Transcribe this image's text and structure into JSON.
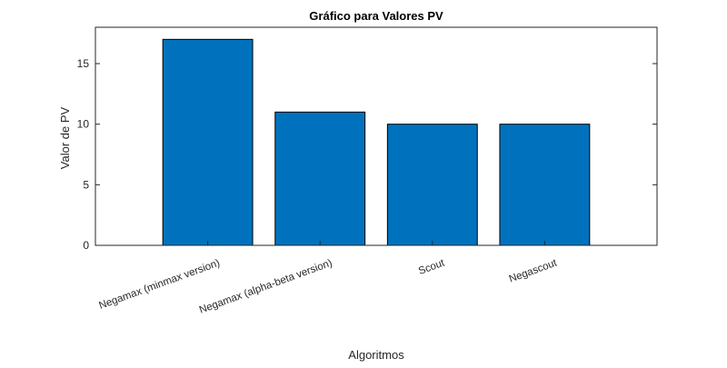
{
  "chart_data": {
    "type": "bar",
    "title": "Gráfico para Valores PV",
    "xlabel": "Algoritmos",
    "ylabel": "Valor de PV",
    "categories": [
      "Negamax (minmax version)",
      "Negamax (alpha-beta version)",
      "Scout",
      "Negascout"
    ],
    "values": [
      17,
      11,
      10,
      10
    ],
    "ylim": [
      0,
      18
    ],
    "yticks": [
      0,
      5,
      10,
      15
    ],
    "ytick_labels": [
      "0",
      "5",
      "10",
      "15"
    ],
    "grid": false,
    "bar_color": "#0072BD"
  }
}
